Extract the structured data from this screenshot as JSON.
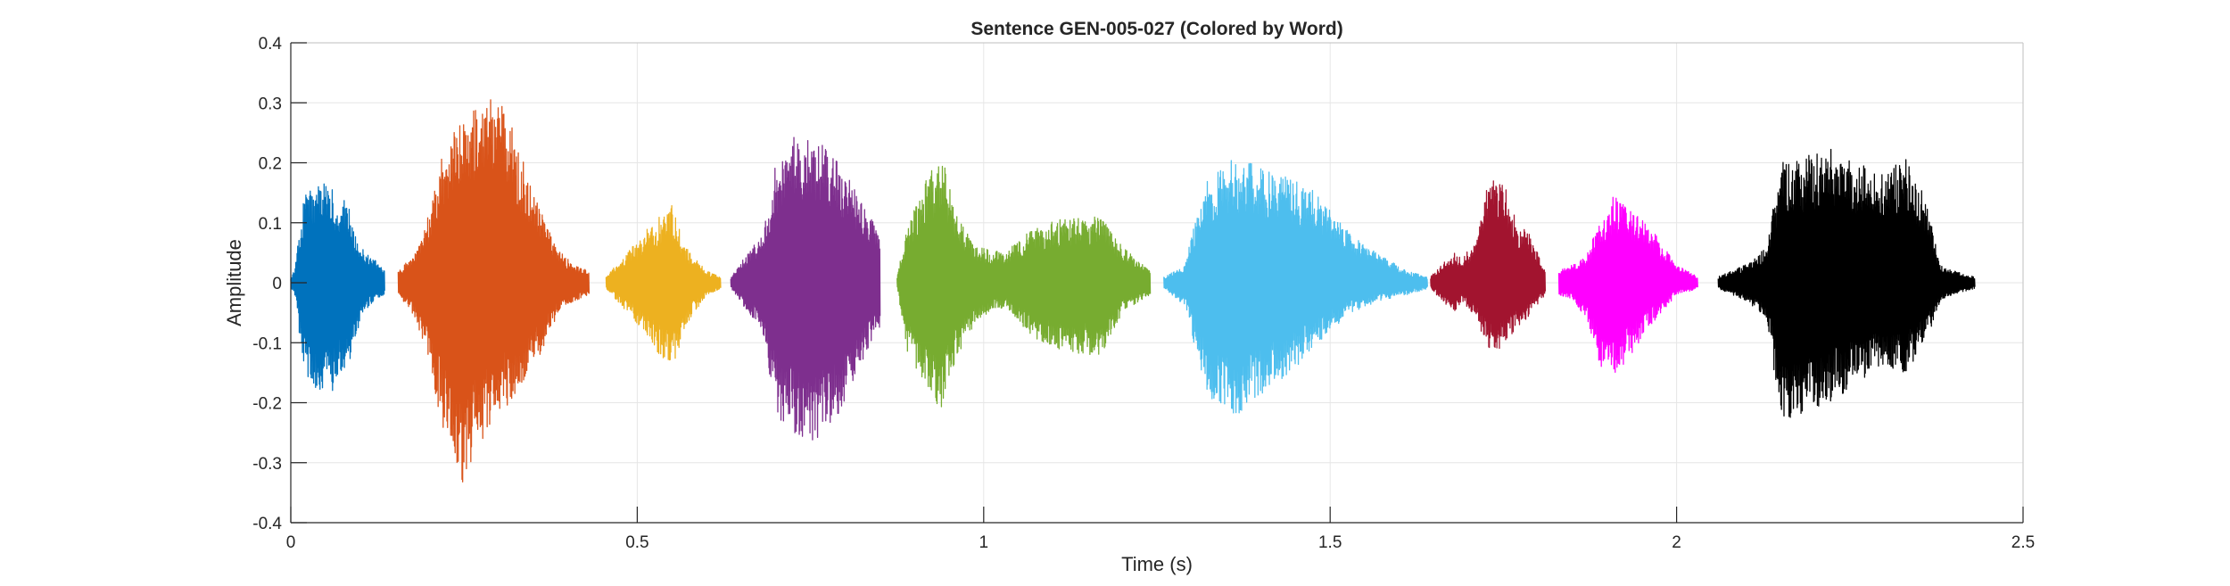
{
  "chart_data": {
    "type": "line",
    "title": "Sentence GEN-005-027 (Colored by Word)",
    "xlabel": "Time (s)",
    "ylabel": "Amplitude",
    "xlim": [
      0,
      2.5
    ],
    "ylim": [
      -0.4,
      0.4
    ],
    "xticks": [
      0,
      0.5,
      1,
      1.5,
      2,
      2.5
    ],
    "xtick_labels": [
      "0",
      "0.5",
      "1",
      "1.5",
      "2",
      "2.5"
    ],
    "yticks": [
      0.4,
      0.3,
      0.2,
      0.1,
      0,
      -0.1,
      -0.2,
      -0.3,
      -0.4
    ],
    "ytick_labels": [
      "0.4",
      "0.3",
      "0.2",
      "0.1",
      "0",
      "-0.1",
      "-0.2",
      "-0.3",
      "-0.4"
    ],
    "grid": true,
    "legend": false,
    "series": [
      {
        "color": "#0072BD",
        "x": [
          0.0,
          0.005,
          0.02,
          0.04,
          0.06,
          0.08,
          0.1,
          0.12,
          0.135
        ],
        "env_max": [
          0.01,
          0.02,
          0.15,
          0.17,
          0.16,
          0.14,
          0.06,
          0.04,
          0.02
        ],
        "env_min": [
          -0.01,
          -0.02,
          -0.16,
          -0.18,
          -0.18,
          -0.16,
          -0.06,
          -0.03,
          -0.02
        ]
      },
      {
        "color": "#D95319",
        "x": [
          0.155,
          0.18,
          0.2,
          0.22,
          0.25,
          0.28,
          0.3,
          0.33,
          0.36,
          0.39,
          0.41,
          0.43
        ],
        "env_max": [
          0.02,
          0.05,
          0.12,
          0.22,
          0.28,
          0.3,
          0.33,
          0.22,
          0.12,
          0.05,
          0.03,
          0.02
        ],
        "env_min": [
          -0.02,
          -0.06,
          -0.14,
          -0.25,
          -0.34,
          -0.25,
          -0.22,
          -0.18,
          -0.12,
          -0.04,
          -0.03,
          -0.02
        ]
      },
      {
        "color": "#EDB120",
        "x": [
          0.455,
          0.47,
          0.5,
          0.53,
          0.55,
          0.57,
          0.6,
          0.62
        ],
        "env_max": [
          0.01,
          0.03,
          0.07,
          0.11,
          0.13,
          0.06,
          0.02,
          0.01
        ],
        "env_min": [
          -0.01,
          -0.03,
          -0.07,
          -0.12,
          -0.15,
          -0.07,
          -0.02,
          -0.01
        ]
      },
      {
        "color": "#7E2F8E",
        "x": [
          0.635,
          0.66,
          0.68,
          0.7,
          0.73,
          0.76,
          0.79,
          0.82,
          0.85
        ],
        "env_max": [
          0.01,
          0.05,
          0.08,
          0.2,
          0.25,
          0.24,
          0.2,
          0.15,
          0.08
        ],
        "env_min": [
          -0.01,
          -0.05,
          -0.08,
          -0.22,
          -0.26,
          -0.27,
          -0.22,
          -0.14,
          -0.08
        ]
      },
      {
        "color": "#77AC30",
        "x": [
          0.875,
          0.89,
          0.92,
          0.94,
          0.96,
          0.99,
          1.03,
          1.07,
          1.12,
          1.17,
          1.2,
          1.24
        ],
        "env_max": [
          0.01,
          0.1,
          0.18,
          0.21,
          0.12,
          0.06,
          0.05,
          0.09,
          0.11,
          0.11,
          0.06,
          0.02
        ],
        "env_min": [
          -0.01,
          -0.12,
          -0.19,
          -0.21,
          -0.13,
          -0.06,
          -0.04,
          -0.09,
          -0.12,
          -0.12,
          -0.05,
          -0.02
        ]
      },
      {
        "color": "#4DBEEE",
        "x": [
          1.26,
          1.29,
          1.32,
          1.36,
          1.39,
          1.43,
          1.47,
          1.5,
          1.53,
          1.57,
          1.61,
          1.64
        ],
        "env_max": [
          0.01,
          0.03,
          0.17,
          0.21,
          0.2,
          0.18,
          0.16,
          0.12,
          0.08,
          0.05,
          0.02,
          0.01
        ],
        "env_min": [
          -0.01,
          -0.04,
          -0.18,
          -0.24,
          -0.2,
          -0.16,
          -0.12,
          -0.08,
          -0.05,
          -0.03,
          -0.02,
          -0.01
        ]
      },
      {
        "color": "#A2142F",
        "x": [
          1.645,
          1.66,
          1.68,
          1.69,
          1.71,
          1.73,
          1.75,
          1.77,
          1.79,
          1.81
        ],
        "env_max": [
          0.01,
          0.03,
          0.05,
          0.04,
          0.07,
          0.18,
          0.17,
          0.1,
          0.08,
          0.02
        ],
        "env_min": [
          -0.01,
          -0.03,
          -0.05,
          -0.03,
          -0.06,
          -0.12,
          -0.11,
          -0.08,
          -0.05,
          -0.02
        ]
      },
      {
        "color": "#FF00FF",
        "x": [
          1.83,
          1.85,
          1.87,
          1.89,
          1.91,
          1.94,
          1.97,
          2.0,
          2.03
        ],
        "env_max": [
          0.02,
          0.03,
          0.05,
          0.1,
          0.15,
          0.12,
          0.08,
          0.03,
          0.01
        ],
        "env_min": [
          -0.02,
          -0.03,
          -0.06,
          -0.14,
          -0.16,
          -0.11,
          -0.06,
          -0.02,
          -0.01
        ]
      },
      {
        "color": "#000000",
        "x": [
          2.06,
          2.08,
          2.1,
          2.13,
          2.15,
          2.18,
          2.22,
          2.26,
          2.3,
          2.33,
          2.36,
          2.38,
          2.4,
          2.43
        ],
        "env_max": [
          0.01,
          0.02,
          0.03,
          0.06,
          0.2,
          0.21,
          0.23,
          0.2,
          0.18,
          0.21,
          0.14,
          0.03,
          0.02,
          0.01
        ],
        "env_min": [
          -0.01,
          -0.02,
          -0.03,
          -0.06,
          -0.23,
          -0.22,
          -0.2,
          -0.17,
          -0.14,
          -0.15,
          -0.1,
          -0.03,
          -0.02,
          -0.01
        ]
      }
    ]
  }
}
